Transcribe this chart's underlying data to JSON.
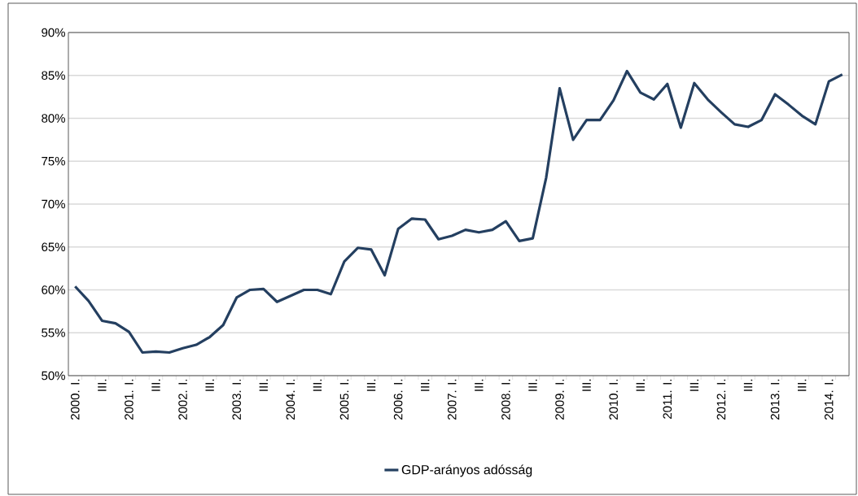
{
  "chart_data": {
    "type": "line",
    "categories": [
      "2000. I.",
      null,
      "III.",
      null,
      "2001. I.",
      null,
      "III.",
      null,
      "2002. I.",
      null,
      "III.",
      null,
      "2003. I.",
      null,
      "III.",
      null,
      "2004. I.",
      null,
      "III.",
      null,
      "2005. I.",
      null,
      "III.",
      null,
      "2006. I.",
      null,
      "III.",
      null,
      "2007. I.",
      null,
      "III.",
      null,
      "2008. I.",
      null,
      "III.",
      null,
      "2009. I.",
      null,
      "III.",
      null,
      "2010. I.",
      null,
      "III.",
      null,
      "2011. I.",
      null,
      "III.",
      null,
      "2012. I.",
      null,
      "III.",
      null,
      "2013. I.",
      null,
      "III.",
      null,
      "2014. I.",
      null
    ],
    "series": [
      {
        "name": "GDP-arányos adósság",
        "color": "#243f60",
        "values": [
          60.4,
          58.7,
          56.4,
          56.1,
          55.1,
          52.7,
          52.8,
          52.7,
          53.2,
          53.6,
          54.5,
          55.9,
          59.1,
          60.0,
          60.1,
          58.6,
          59.3,
          60.0,
          60.0,
          59.5,
          63.3,
          64.9,
          64.7,
          61.7,
          67.1,
          68.3,
          68.2,
          65.9,
          66.3,
          67.0,
          66.7,
          67.0,
          68.0,
          65.7,
          66.0,
          73.1,
          83.5,
          77.5,
          79.8,
          79.8,
          82.1,
          85.5,
          83.0,
          82.2,
          84.0,
          78.9,
          84.1,
          82.2,
          80.7,
          79.3,
          79.0,
          79.8,
          82.8,
          81.6,
          80.3,
          79.3,
          84.3,
          85.1
        ]
      }
    ],
    "ylim": [
      50,
      90
    ],
    "yticks": [
      {
        "value": 50,
        "label": "50%"
      },
      {
        "value": 55,
        "label": "55%"
      },
      {
        "value": 60,
        "label": "60%"
      },
      {
        "value": 65,
        "label": "65%"
      },
      {
        "value": 70,
        "label": "70%"
      },
      {
        "value": 75,
        "label": "75%"
      },
      {
        "value": 80,
        "label": "80%"
      },
      {
        "value": 85,
        "label": "85%"
      },
      {
        "value": 90,
        "label": "90%"
      }
    ],
    "grid": "y",
    "legend": "bottom",
    "marker": "none",
    "line_style": "solid"
  }
}
